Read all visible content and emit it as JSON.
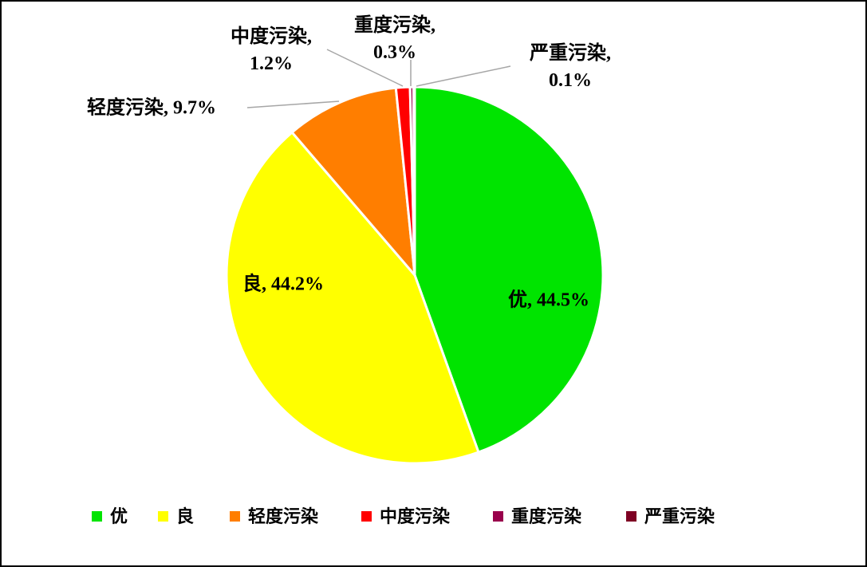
{
  "chart_data": {
    "type": "pie",
    "categories": [
      "优",
      "良",
      "轻度污染",
      "中度污染",
      "重度污染",
      "严重污染"
    ],
    "values": [
      44.5,
      44.2,
      9.7,
      1.2,
      0.3,
      0.1
    ],
    "value_labels": [
      "优, 44.5%",
      "良, 44.2%",
      "轻度污染, 9.7%",
      "中度污染, 1.2%",
      "重度污染, 0.3%",
      "严重污染, 0.1%"
    ],
    "colors": [
      "#00e400",
      "#ffff00",
      "#ff7e00",
      "#ff0000",
      "#99004c",
      "#7e0023"
    ],
    "legend": "bottom"
  }
}
